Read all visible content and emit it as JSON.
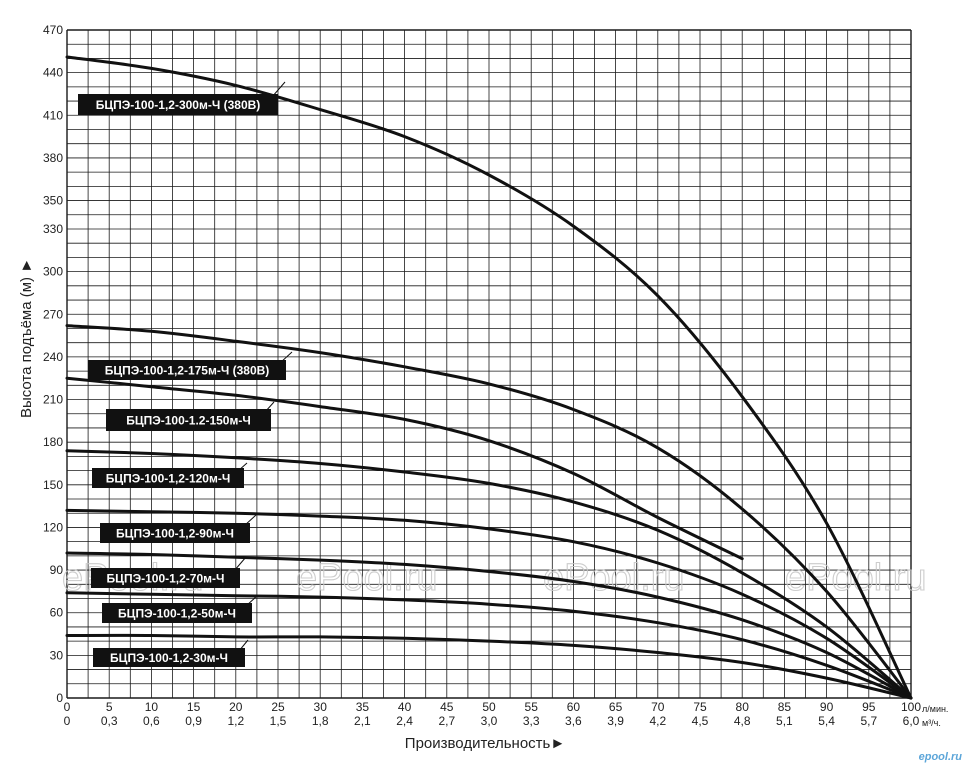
{
  "chart_data": {
    "type": "line",
    "xlabel": "Производительность►",
    "ylabel": "Высота подъёма (м) ►",
    "x_unit": "л/мин.",
    "x2_unit": "м³/ч.",
    "xlim": [
      0,
      100
    ],
    "ylim": [
      0,
      470
    ],
    "grid": true,
    "x_ticks": [
      0,
      5,
      10,
      15,
      20,
      25,
      30,
      35,
      40,
      45,
      50,
      55,
      60,
      65,
      70,
      75,
      80,
      85,
      90,
      95,
      100
    ],
    "x_ticks_labels": [
      "0",
      "5",
      "10",
      "15",
      "20",
      "25",
      "30",
      "35",
      "40",
      "45",
      "50",
      "55",
      "60",
      "65",
      "70",
      "75",
      "80",
      "85",
      "90",
      "95",
      "100"
    ],
    "x2_ticks_labels": [
      "0",
      "0,3",
      "0,6",
      "0,9",
      "1,2",
      "1,5",
      "1,8",
      "2,1",
      "2,4",
      "2,7",
      "3,0",
      "3,3",
      "3,6",
      "3,9",
      "4,2",
      "4,5",
      "4,8",
      "5,1",
      "5,4",
      "5,7",
      "6,0"
    ],
    "y_ticks": [
      0,
      30,
      60,
      90,
      120,
      150,
      180,
      210,
      240,
      270,
      300,
      330,
      350,
      380,
      410,
      440,
      470
    ],
    "y_ticks_labels": [
      "0",
      "30",
      "60",
      "90",
      "120",
      "150",
      "180",
      "210",
      "240",
      "270",
      "300",
      "330",
      "350",
      "380",
      "410",
      "440",
      "470"
    ],
    "series": [
      {
        "name": "БЦПЭ-100-1,2-300м-Ч (380В)",
        "x": [
          0,
          10,
          20,
          30,
          40,
          50,
          60,
          70,
          80,
          90,
          100
        ],
        "y": [
          451,
          443,
          431,
          414,
          395,
          368,
          332,
          283,
          212,
          123,
          0
        ]
      },
      {
        "name": "БЦПЭ-100-1,2-175м-Ч (380В)",
        "x": [
          0,
          10,
          20,
          30,
          40,
          50,
          60,
          70,
          80,
          90,
          100
        ],
        "y": [
          262,
          258,
          251,
          243,
          233,
          221,
          203,
          176,
          133,
          75,
          0
        ]
      },
      {
        "name": "БЦПЭ-100-1.2-150м-Ч",
        "x": [
          0,
          10,
          20,
          30,
          40,
          50,
          60,
          70,
          80
        ],
        "y": [
          225,
          219,
          213,
          205,
          196,
          181,
          158,
          127,
          98
        ]
      },
      {
        "name": "БЦПЭ-100-1,2-120м-Ч",
        "x": [
          0,
          10,
          20,
          30,
          40,
          50,
          60,
          70,
          80,
          90,
          100
        ],
        "y": [
          174,
          172,
          169,
          165,
          159,
          151,
          138,
          118,
          88,
          50,
          0
        ]
      },
      {
        "name": "БЦПЭ-100-1,2-90м-Ч",
        "x": [
          0,
          10,
          20,
          30,
          40,
          50,
          60,
          70,
          80,
          90,
          100
        ],
        "y": [
          132,
          131,
          130,
          128,
          125,
          119,
          110,
          95,
          73,
          42,
          0
        ]
      },
      {
        "name": "БЦПЭ-100-1,2-70м-Ч",
        "x": [
          0,
          10,
          20,
          30,
          40,
          50,
          60,
          70,
          80,
          90,
          100
        ],
        "y": [
          102,
          101,
          99,
          97,
          94,
          89,
          82,
          71,
          55,
          32,
          0
        ]
      },
      {
        "name": "БЦПЭ-100-1,2-50м-Ч",
        "x": [
          0,
          10,
          20,
          30,
          40,
          50,
          60,
          70,
          80,
          90,
          100
        ],
        "y": [
          74,
          73,
          72,
          71,
          69,
          66,
          61,
          53,
          41,
          23,
          0
        ]
      },
      {
        "name": "БЦПЭ-100-1,2-30м-Ч",
        "x": [
          0,
          10,
          20,
          30,
          40,
          50,
          60,
          70,
          80,
          90,
          100
        ],
        "y": [
          44,
          44,
          43,
          43,
          42,
          40,
          37,
          32,
          25,
          14,
          0
        ]
      }
    ]
  },
  "watermark_text": "ePool.ru",
  "brand_text": "epool.ru",
  "colors": {
    "line": "#111111",
    "grid": "#1a1a1a",
    "label_bg": "#111111",
    "label_text": "#ffffff",
    "brand": "#5da6d9"
  }
}
